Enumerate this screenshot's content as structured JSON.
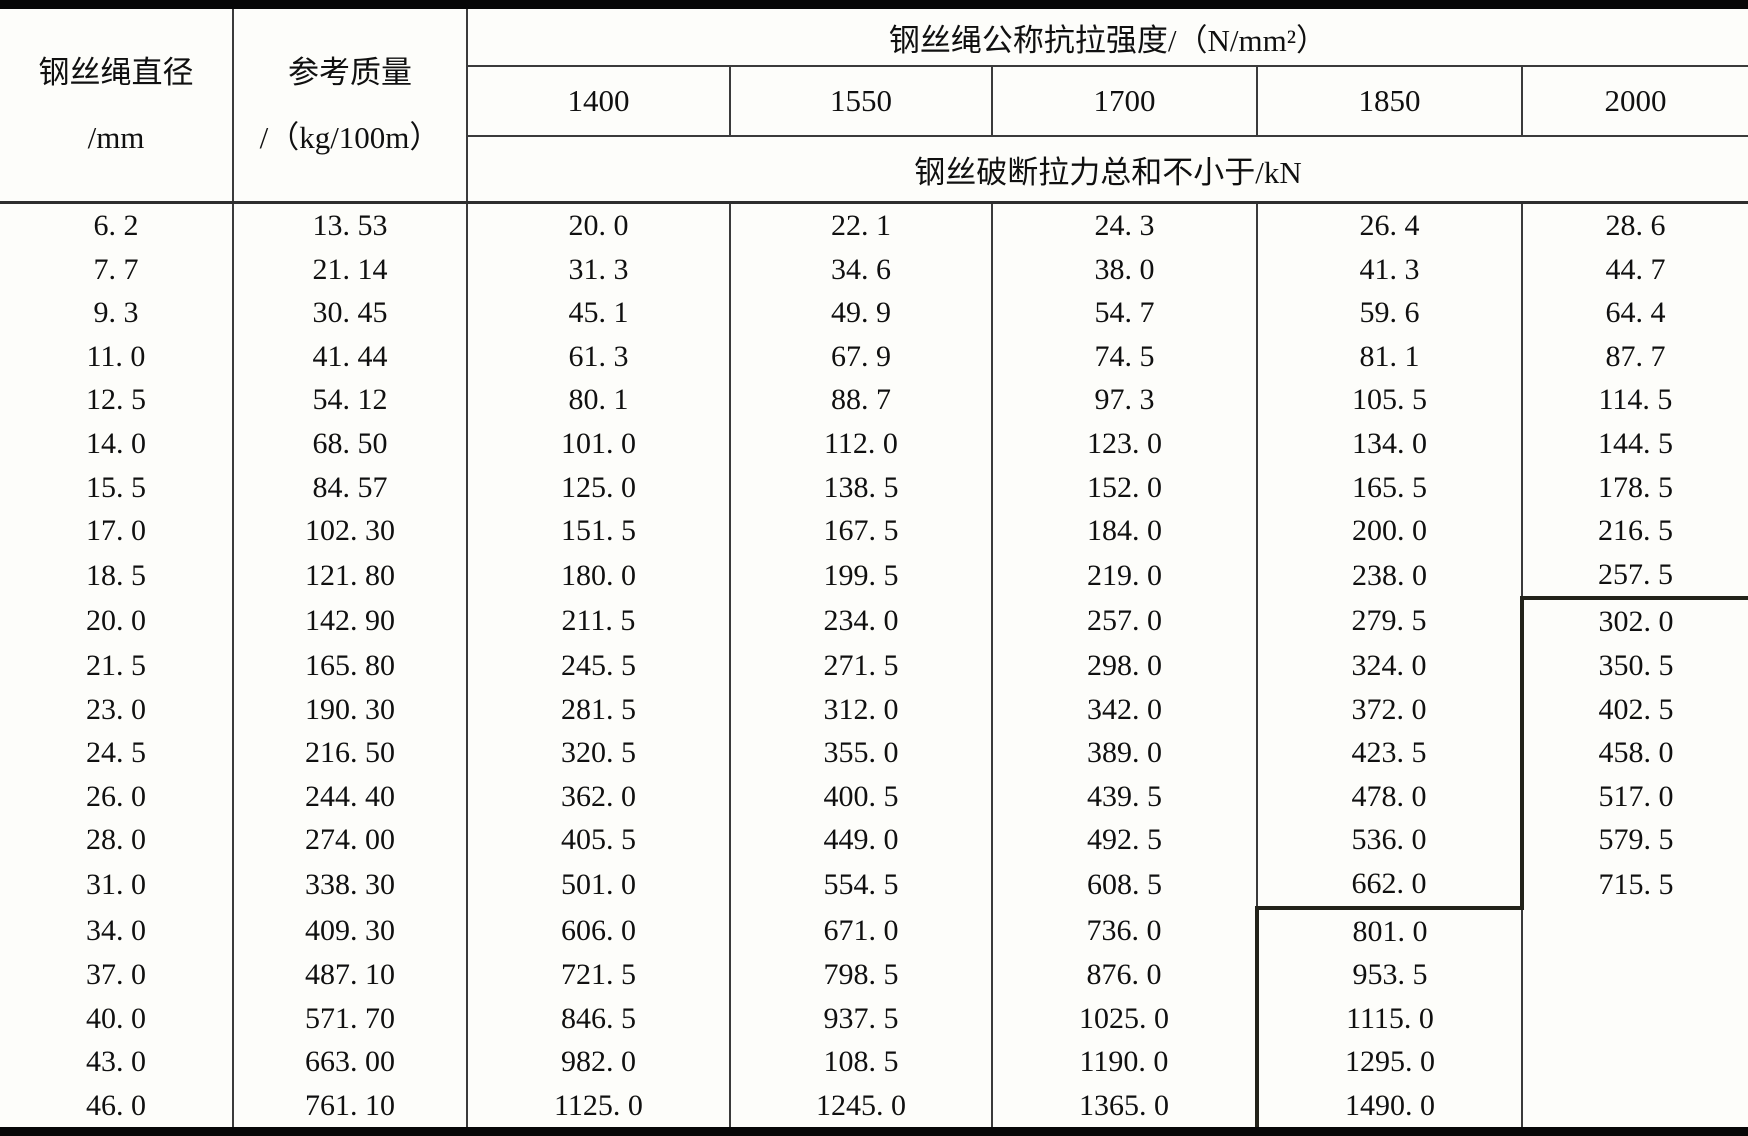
{
  "table": {
    "headers": {
      "diameter_line1": "钢丝绳直径",
      "diameter_line2": "/mm",
      "mass_line1": "参考质量",
      "mass_line2": "/（kg/100m）",
      "strength_title": "钢丝绳公称抗拉强度/（N/mm²）",
      "strength_grades": [
        "1400",
        "1550",
        "1700",
        "1850",
        "2000"
      ],
      "breaking_force_label": "钢丝破断拉力总和不小于/kN"
    },
    "rows": [
      [
        "6. 2",
        "13. 53",
        "20. 0",
        "22. 1",
        "24. 3",
        "26. 4",
        "28. 6"
      ],
      [
        "7. 7",
        "21. 14",
        "31. 3",
        "34. 6",
        "38. 0",
        "41. 3",
        "44. 7"
      ],
      [
        "9. 3",
        "30. 45",
        "45. 1",
        "49. 9",
        "54. 7",
        "59. 6",
        "64. 4"
      ],
      [
        "11. 0",
        "41. 44",
        "61. 3",
        "67. 9",
        "74. 5",
        "81. 1",
        "87. 7"
      ],
      [
        "12. 5",
        "54. 12",
        "80. 1",
        "88. 7",
        "97. 3",
        "105. 5",
        "114. 5"
      ],
      [
        "14. 0",
        "68. 50",
        "101. 0",
        "112. 0",
        "123. 0",
        "134. 0",
        "144. 5"
      ],
      [
        "15. 5",
        "84. 57",
        "125. 0",
        "138. 5",
        "152. 0",
        "165. 5",
        "178. 5"
      ],
      [
        "17. 0",
        "102. 30",
        "151. 5",
        "167. 5",
        "184. 0",
        "200. 0",
        "216. 5"
      ],
      [
        "18. 5",
        "121. 80",
        "180. 0",
        "199. 5",
        "219. 0",
        "238. 0",
        "257. 5"
      ],
      [
        "20. 0",
        "142. 90",
        "211. 5",
        "234. 0",
        "257. 0",
        "279. 5",
        "302. 0"
      ],
      [
        "21. 5",
        "165. 80",
        "245. 5",
        "271. 5",
        "298. 0",
        "324. 0",
        "350. 5"
      ],
      [
        "23. 0",
        "190. 30",
        "281. 5",
        "312. 0",
        "342. 0",
        "372. 0",
        "402. 5"
      ],
      [
        "24. 5",
        "216. 50",
        "320. 5",
        "355. 0",
        "389. 0",
        "423. 5",
        "458. 0"
      ],
      [
        "26. 0",
        "244. 40",
        "362. 0",
        "400. 5",
        "439. 5",
        "478. 0",
        "517. 0"
      ],
      [
        "28. 0",
        "274. 00",
        "405. 5",
        "449. 0",
        "492. 5",
        "536. 0",
        "579. 5"
      ],
      [
        "31. 0",
        "338. 30",
        "501. 0",
        "554. 5",
        "608. 5",
        "662. 0",
        "715. 5"
      ],
      [
        "34. 0",
        "409. 30",
        "606. 0",
        "671. 0",
        "736. 0",
        "801. 0",
        ""
      ],
      [
        "37. 0",
        "487. 10",
        "721. 5",
        "798. 5",
        "876. 0",
        "953. 5",
        ""
      ],
      [
        "40. 0",
        "571. 70",
        "846. 5",
        "937. 5",
        "1025. 0",
        "1115. 0",
        ""
      ],
      [
        "43. 0",
        "663. 00",
        "982. 0",
        "108. 5",
        "1190. 0",
        "1295. 0",
        ""
      ],
      [
        "46. 0",
        "761. 10",
        "1125. 0",
        "1245. 0",
        "1365. 0",
        "1490. 0",
        ""
      ]
    ],
    "step_outline": {
      "col2000_first_row": 9,
      "col2000_last_row": 15,
      "col1850_first_row": 16
    }
  },
  "colors": {
    "background": "#fdfdfa",
    "text": "#101010",
    "thin_line": "#3b3b3b",
    "thick_line": "#23231a",
    "outer_border": "#070707"
  }
}
